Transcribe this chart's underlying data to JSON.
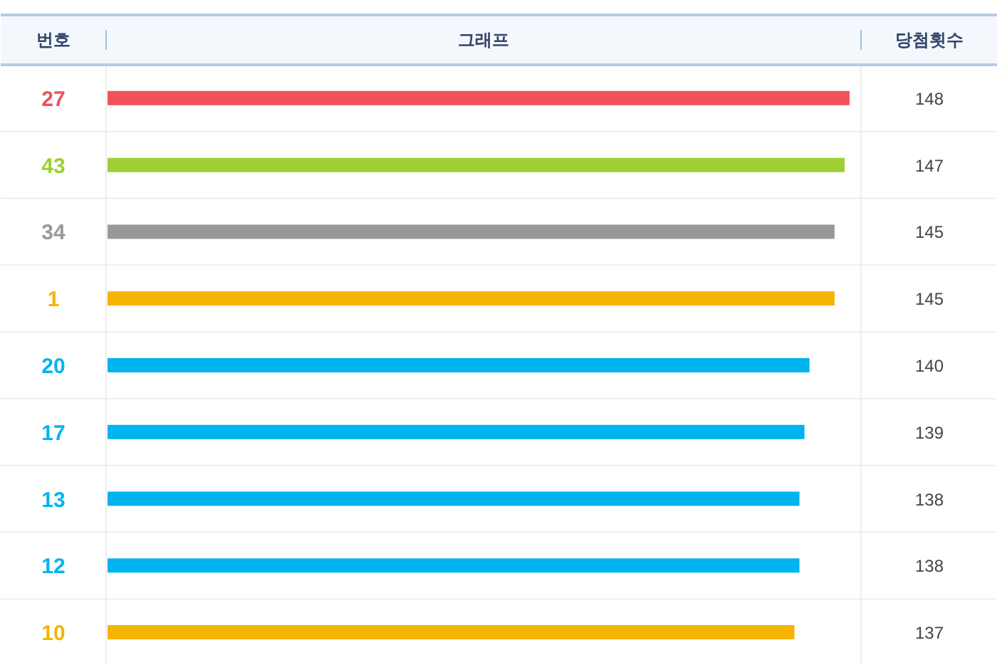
{
  "chart_data": {
    "type": "bar",
    "orientation": "horizontal",
    "title": "그래프",
    "ylabel": "번호",
    "xlabel": "당첨횟수",
    "categories": [
      "27",
      "43",
      "34",
      "1",
      "20",
      "17",
      "13",
      "12",
      "10"
    ],
    "values": [
      148,
      147,
      145,
      145,
      140,
      139,
      138,
      138,
      137
    ],
    "colors": [
      "#f0525a",
      "#9dcf34",
      "#999999",
      "#f5b400",
      "#00b4ef",
      "#00b4ef",
      "#00b4ef",
      "#00b4ef",
      "#f5b400"
    ],
    "data_labels": true,
    "grid": false
  }
}
